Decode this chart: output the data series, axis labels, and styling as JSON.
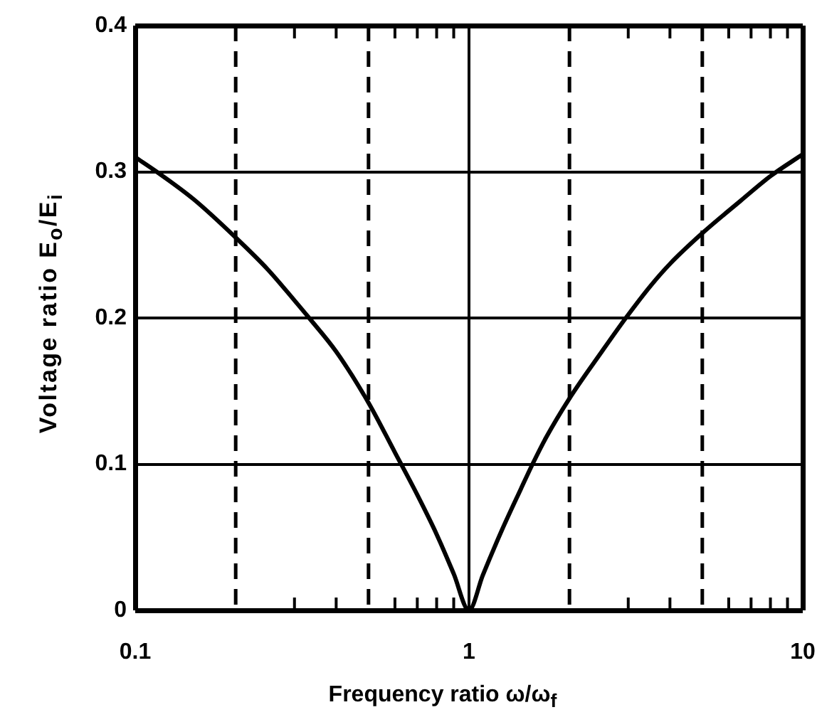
{
  "chart_data": {
    "type": "line",
    "xlabel": "Frequency ratio ω/ω$_{f}$",
    "ylabel": "Voltage ratio E$_{o}$/E$_{i}$",
    "x": [
      0.1,
      0.116,
      0.15,
      0.2,
      0.25,
      0.3,
      0.332,
      0.4,
      0.5,
      0.6,
      0.7,
      0.8,
      0.9,
      1,
      1.1,
      1.25,
      1.43,
      1.55,
      1.7,
      2,
      2.5,
      2.95,
      3.5,
      4,
      5,
      6.5,
      8,
      10
    ],
    "values": [
      0.31,
      0.3,
      0.281,
      0.255,
      0.233,
      0.212,
      0.2,
      0.177,
      0.142,
      0.108,
      0.079,
      0.052,
      0.025,
      0,
      0.024,
      0.054,
      0.083,
      0.1,
      0.118,
      0.145,
      0.177,
      0.2,
      0.222,
      0.237,
      0.258,
      0.28,
      0.297,
      0.312
    ],
    "color": "#000000",
    "marker": "none",
    "line_style": "solid",
    "log": "x",
    "xlim": [
      0.1,
      10
    ],
    "xticks": [
      {
        "value": 0.1,
        "label": "0.1"
      },
      {
        "value": 0.3,
        "label": null
      },
      {
        "value": 0.4,
        "label": null
      },
      {
        "value": 0.6,
        "label": null
      },
      {
        "value": 0.7,
        "label": null
      },
      {
        "value": 0.8,
        "label": null
      },
      {
        "value": 0.9,
        "label": null
      },
      1,
      {
        "value": 3,
        "label": null
      },
      {
        "value": 4,
        "label": null
      },
      {
        "value": 6,
        "label": null
      },
      {
        "value": 7,
        "label": null
      },
      {
        "value": 8,
        "label": null
      },
      {
        "value": 9,
        "label": null
      },
      10
    ],
    "ylim": [
      0,
      0.4
    ],
    "yticks": [
      0,
      0.1,
      0.2,
      0.3,
      0.4
    ],
    "grid": true,
    "ref_lines": [
      {
        "axis": "x",
        "value": 0.2,
        "color": "#000000",
        "line_style": "dashed"
      },
      {
        "axis": "x",
        "value": 0.5,
        "color": "#000000",
        "line_style": "dashed"
      },
      {
        "axis": "x",
        "value": 2,
        "color": "#000000",
        "line_style": "dashed"
      },
      {
        "axis": "x",
        "value": 5,
        "color": "#000000",
        "line_style": "dashed"
      }
    ]
  }
}
